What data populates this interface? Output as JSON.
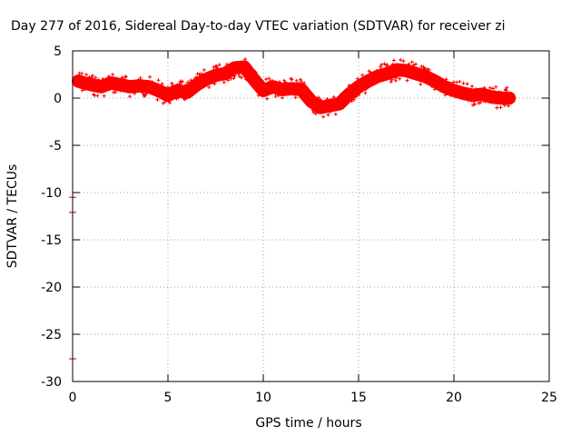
{
  "chart_data": {
    "type": "line",
    "title": "Day 277 of 2016, Sidereal Day-to-day VTEC variation (SDTVAR) for receiver zi",
    "xlabel": "GPS time / hours",
    "ylabel": "SDTVAR / TECUs",
    "xlim": [
      0,
      25
    ],
    "ylim": [
      -30,
      5
    ],
    "xticks": [
      0,
      5,
      10,
      15,
      20,
      25
    ],
    "yticks": [
      5,
      0,
      -5,
      -10,
      -15,
      -20,
      -25,
      -30
    ],
    "grid": true,
    "series": [
      {
        "color": "#ff0000",
        "x": [
          0.3,
          0.6,
          1.0,
          1.5,
          2.0,
          2.5,
          3.0,
          3.5,
          4.0,
          4.5,
          5.0,
          5.5,
          6.0,
          6.5,
          7.0,
          7.5,
          8.0,
          8.5,
          9.0,
          9.5,
          10.0,
          10.5,
          11.0,
          11.5,
          12.0,
          12.5,
          13.0,
          13.5,
          14.0,
          14.5,
          15.0,
          15.5,
          16.0,
          16.5,
          17.0,
          17.5,
          18.0,
          18.5,
          19.0,
          19.5,
          20.0,
          20.5,
          21.0,
          21.5,
          22.0,
          22.5,
          22.9
        ],
        "y": [
          1.8,
          1.6,
          1.4,
          1.2,
          1.6,
          1.4,
          1.2,
          1.3,
          1.2,
          0.8,
          0.3,
          0.8,
          0.6,
          1.4,
          2.0,
          2.4,
          2.6,
          3.2,
          3.3,
          2.0,
          0.8,
          1.2,
          0.9,
          1.0,
          0.9,
          -0.3,
          -1.0,
          -0.8,
          -0.6,
          0.4,
          1.2,
          1.8,
          2.3,
          2.6,
          3.0,
          2.9,
          2.6,
          2.3,
          1.8,
          1.2,
          0.8,
          0.5,
          0.3,
          0.4,
          0.1,
          0.0,
          0.0
        ],
        "band": 0.7
      }
    ],
    "outliers": [
      {
        "x": 0,
        "y": -10.5
      },
      {
        "x": 0,
        "y": -12.1
      },
      {
        "x": 0,
        "y": -27.6
      }
    ]
  }
}
